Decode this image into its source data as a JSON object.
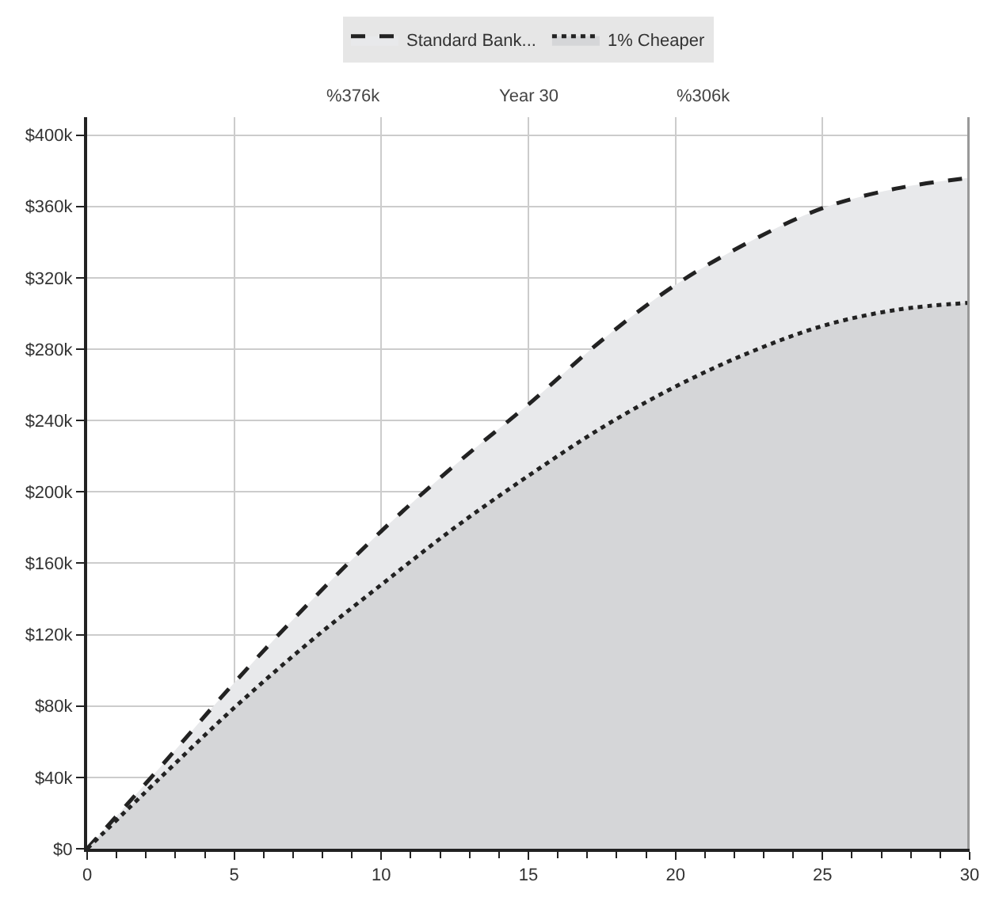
{
  "chart_data": {
    "type": "area",
    "x": [
      0,
      2.5,
      5,
      7.5,
      10,
      12.5,
      15,
      17.5,
      20,
      22.5,
      25,
      27.5,
      30
    ],
    "series": [
      {
        "name": "Standard Bank...",
        "color": "#222222",
        "line_style": "dashed",
        "values": [
          0,
          46000,
          93000,
          137000,
          178000,
          215000,
          249000,
          285000,
          316000,
          340000,
          359000,
          370000,
          376000
        ]
      },
      {
        "name": "1% Cheaper",
        "color": "#222222",
        "line_style": "dotted",
        "values": [
          0,
          40000,
          79000,
          115000,
          148000,
          180000,
          209000,
          236000,
          259000,
          278000,
          293000,
          302000,
          306000
        ]
      }
    ],
    "xlim": [
      0,
      30
    ],
    "xticks": [
      0,
      5,
      10,
      15,
      20,
      25,
      30
    ],
    "ylim": [
      0,
      410000
    ],
    "yticks": [
      {
        "value": 0,
        "label": "$0"
      },
      {
        "value": 40000,
        "label": "$40k"
      },
      {
        "value": 80000,
        "label": "$80k"
      },
      {
        "value": 120000,
        "label": "$120k"
      },
      {
        "value": 160000,
        "label": "$160k"
      },
      {
        "value": 200000,
        "label": "$200k"
      },
      {
        "value": 240000,
        "label": "$240k"
      },
      {
        "value": 280000,
        "label": "$280k"
      },
      {
        "value": 320000,
        "label": "$320k"
      },
      {
        "value": 360000,
        "label": "$360k"
      },
      {
        "value": 400000,
        "label": "$400k"
      }
    ],
    "ref_lines": [
      {
        "axis": "x",
        "value": 30,
        "color": "#999999"
      }
    ],
    "annotations": [
      "%376k",
      "Year 30",
      "%306k"
    ],
    "grid": true,
    "legend": "top",
    "marker": "none"
  }
}
